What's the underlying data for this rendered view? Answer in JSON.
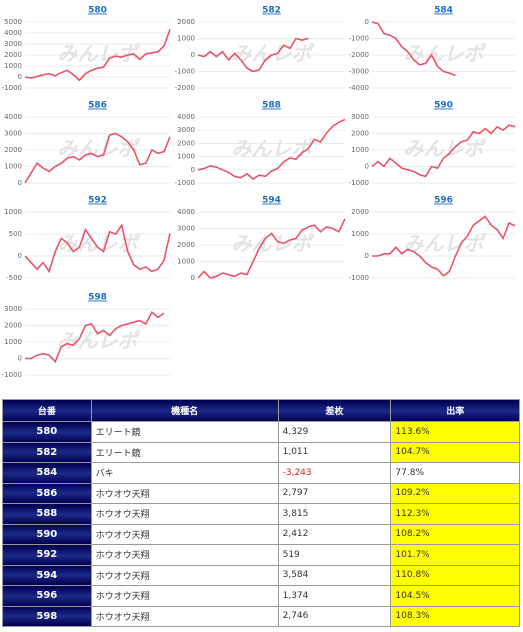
{
  "watermark": "みんレポ",
  "chart_data": [
    {
      "type": "line",
      "title": "580",
      "color": "#e8546a",
      "grid": true,
      "ylim": [
        -1000,
        5000
      ],
      "yticks": [
        -1000,
        0,
        1000,
        2000,
        3000,
        4000,
        5000
      ],
      "values": [
        0,
        -100,
        50,
        200,
        300,
        100,
        400,
        600,
        200,
        -300,
        300,
        600,
        800,
        900,
        1700,
        1900,
        1800,
        2000,
        2100,
        1600,
        2100,
        2200,
        2300,
        2800,
        4329
      ]
    },
    {
      "type": "line",
      "title": "582",
      "color": "#e8546a",
      "grid": true,
      "ylim": [
        -2000,
        2000
      ],
      "yticks": [
        -2000,
        -1000,
        0,
        1000,
        2000
      ],
      "values": [
        0,
        -100,
        200,
        -100,
        200,
        -300,
        100,
        -300,
        -800,
        -1000,
        -900,
        -300,
        0,
        100,
        600,
        400,
        1000,
        900,
        1011
      ]
    },
    {
      "type": "line",
      "title": "584",
      "color": "#e8546a",
      "grid": true,
      "ylim": [
        -4000,
        0
      ],
      "yticks": [
        -4000,
        -3000,
        -2000,
        -1000,
        0
      ],
      "values": [
        0,
        -100,
        -700,
        -800,
        -1000,
        -1500,
        -1800,
        -2300,
        -2600,
        -2500,
        -2000,
        -2700,
        -3000,
        -3100,
        -3243
      ]
    },
    {
      "type": "line",
      "title": "586",
      "color": "#e8546a",
      "grid": true,
      "ylim": [
        0,
        4000
      ],
      "yticks": [
        0,
        1000,
        2000,
        3000,
        4000
      ],
      "values": [
        0,
        600,
        1200,
        900,
        700,
        1000,
        1200,
        1500,
        1600,
        1400,
        1700,
        1800,
        1600,
        1700,
        2900,
        3000,
        2800,
        2500,
        2000,
        1100,
        1200,
        2000,
        1800,
        1900,
        2797
      ]
    },
    {
      "type": "line",
      "title": "588",
      "color": "#e8546a",
      "grid": true,
      "ylim": [
        -1000,
        4000
      ],
      "yticks": [
        -1000,
        0,
        1000,
        2000,
        3000,
        4000
      ],
      "values": [
        0,
        100,
        300,
        200,
        0,
        -200,
        -500,
        -600,
        -300,
        -700,
        -400,
        -500,
        -100,
        100,
        600,
        900,
        800,
        1300,
        1600,
        2300,
        2100,
        2800,
        3300,
        3600,
        3815
      ]
    },
    {
      "type": "line",
      "title": "590",
      "color": "#e8546a",
      "grid": true,
      "ylim": [
        -1000,
        3000
      ],
      "yticks": [
        -1000,
        0,
        1000,
        2000,
        3000
      ],
      "values": [
        0,
        300,
        0,
        500,
        200,
        -100,
        -200,
        -300,
        -500,
        -600,
        0,
        -100,
        500,
        800,
        1200,
        1500,
        1600,
        2100,
        2000,
        2300,
        2000,
        2400,
        2200,
        2500,
        2412
      ]
    },
    {
      "type": "line",
      "title": "592",
      "color": "#e8546a",
      "grid": true,
      "ylim": [
        -500,
        1000
      ],
      "yticks": [
        -500,
        0,
        500,
        1000
      ],
      "values": [
        0,
        -150,
        -300,
        -150,
        -350,
        100,
        400,
        300,
        100,
        200,
        600,
        400,
        200,
        100,
        550,
        500,
        700,
        100,
        -200,
        -300,
        -250,
        -350,
        -300,
        -100,
        519
      ]
    },
    {
      "type": "line",
      "title": "594",
      "color": "#e8546a",
      "grid": true,
      "ylim": [
        0,
        4000
      ],
      "yticks": [
        0,
        1000,
        2000,
        3000,
        4000
      ],
      "values": [
        0,
        400,
        0,
        100,
        300,
        200,
        100,
        300,
        200,
        1000,
        1800,
        2400,
        2700,
        2200,
        2100,
        2300,
        2400,
        2900,
        3100,
        3200,
        2800,
        3100,
        3000,
        2800,
        3584
      ]
    },
    {
      "type": "line",
      "title": "596",
      "color": "#e8546a",
      "grid": true,
      "ylim": [
        -1000,
        2000
      ],
      "yticks": [
        -1000,
        0,
        1000,
        2000
      ],
      "values": [
        0,
        0,
        100,
        100,
        400,
        100,
        300,
        200,
        0,
        -300,
        -500,
        -600,
        -900,
        -700,
        0,
        600,
        900,
        1400,
        1600,
        1800,
        1400,
        1200,
        800,
        1500,
        1374
      ]
    },
    {
      "type": "line",
      "title": "598",
      "color": "#e8546a",
      "grid": true,
      "ylim": [
        -1000,
        3000
      ],
      "yticks": [
        -1000,
        0,
        1000,
        2000,
        3000
      ],
      "values": [
        0,
        0,
        200,
        300,
        200,
        -200,
        700,
        900,
        800,
        1200,
        2000,
        2100,
        1500,
        1700,
        1400,
        1800,
        2000,
        2100,
        2200,
        2300,
        2100,
        2800,
        2500,
        2746
      ]
    }
  ],
  "table": {
    "header": [
      "台番",
      "機種名",
      "差枚",
      "出率"
    ],
    "highlight_color": "#ffff00",
    "rows": [
      [
        "580",
        "エリート鏡",
        "4,329",
        "113.6%"
      ],
      [
        "582",
        "エリート鏡",
        "1,011",
        "104.7%"
      ],
      [
        "584",
        "バキ",
        "-3,243",
        "77.8%"
      ],
      [
        "586",
        "ホウオウ天翔",
        "2,797",
        "109.2%"
      ],
      [
        "588",
        "ホウオウ天翔",
        "3,815",
        "112.3%"
      ],
      [
        "590",
        "ホウオウ天翔",
        "2,412",
        "108.2%"
      ],
      [
        "592",
        "ホウオウ天翔",
        "519",
        "101.7%"
      ],
      [
        "594",
        "ホウオウ天翔",
        "3,584",
        "110.8%"
      ],
      [
        "596",
        "ホウオウ天翔",
        "1,374",
        "104.5%"
      ],
      [
        "598",
        "ホウオウ天翔",
        "2,746",
        "108.3%"
      ]
    ]
  }
}
